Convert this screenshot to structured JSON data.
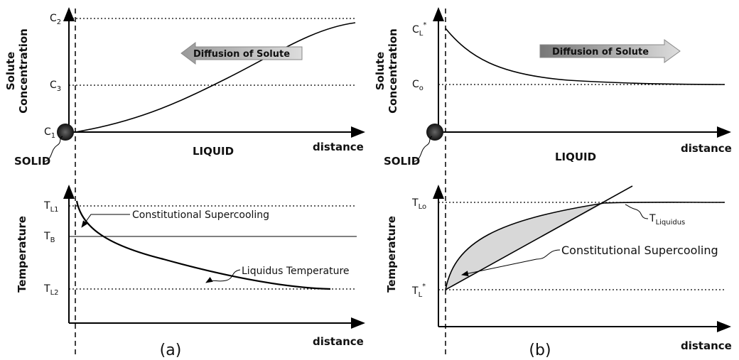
{
  "panels": [
    {
      "caption": "(a)",
      "top": {
        "y_label": [
          "Solute",
          "Concentration"
        ],
        "levels": [
          {
            "base": "C",
            "sub": "2"
          },
          {
            "base": "C",
            "sub": "3"
          },
          {
            "base": "C",
            "sub": "1"
          }
        ],
        "arrow_label": "Diffusion of Solute",
        "solid": "SOLID",
        "liquid": "LIQUID",
        "x_label": "distance"
      },
      "bottom": {
        "y_label": "Temperature",
        "levels": [
          {
            "base": "T",
            "sub": "L1"
          },
          {
            "base": "T",
            "sub": "B"
          },
          {
            "base": "T",
            "sub": "L2"
          }
        ],
        "annotations": [
          "Constitutional Supercooling",
          "Liquidus Temperature"
        ],
        "x_label": "distance"
      }
    },
    {
      "caption": "(b)",
      "top": {
        "y_label": [
          "Solute",
          "Concentration"
        ],
        "levels": [
          {
            "base": "C",
            "sub": "L",
            "sup": "*"
          },
          {
            "base": "C",
            "sub": "o"
          }
        ],
        "arrow_label": "Diffusion of Solute",
        "solid": "SOLID",
        "liquid": "LIQUID",
        "x_label": "distance"
      },
      "bottom": {
        "y_label": "Temperature",
        "levels": [
          {
            "base": "T",
            "sub": "Lo"
          },
          {
            "base": "T",
            "sub": "L",
            "sup": "*"
          }
        ],
        "annotations": [
          {
            "base": "T",
            "sub": "Liquidus"
          },
          "Constitutional Supercooling"
        ],
        "x_label": "distance"
      }
    }
  ]
}
